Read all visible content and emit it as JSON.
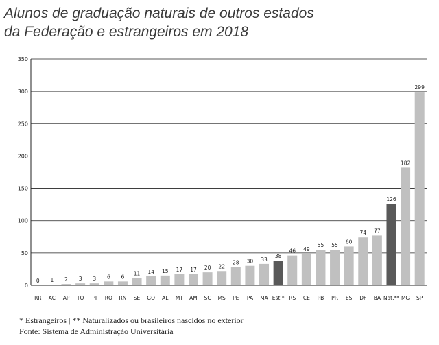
{
  "title_lines": [
    "Alunos de graduação naturais de outros estados",
    "da Federação e estrangeiros em 2018"
  ],
  "footnotes": {
    "legend": "* Estrangeiros | ** Naturalizados ou brasileiros nascidos no exterior",
    "source": "Fonte: Sistema de Administração Universitária"
  },
  "colors": {
    "default_bar": "#c0c0c0",
    "highlight_bar": "#595959",
    "grid": "#222222",
    "text": "#222222"
  },
  "chart_data": {
    "type": "bar",
    "title": "Alunos de graduação naturais de outros estados da Federação e estrangeiros em 2018",
    "xlabel": "",
    "ylabel": "",
    "ylim": [
      0,
      350
    ],
    "yticks": [
      0,
      50,
      100,
      150,
      200,
      250,
      300,
      350
    ],
    "grid": true,
    "categories": [
      "RR",
      "AC",
      "AP",
      "TO",
      "PI",
      "RO",
      "RN",
      "SE",
      "GO",
      "AL",
      "MT",
      "AM",
      "SC",
      "MS",
      "PE",
      "PA",
      "MA",
      "Est.*",
      "RS",
      "CE",
      "PB",
      "PR",
      "ES",
      "DF",
      "BA",
      "Nat.**",
      "MG",
      "SP"
    ],
    "values": [
      0,
      1,
      2,
      3,
      3,
      6,
      6,
      11,
      14,
      15,
      17,
      17,
      20,
      22,
      28,
      30,
      33,
      38,
      46,
      49,
      55,
      55,
      60,
      74,
      77,
      126,
      182,
      299
    ],
    "highlight": [
      "Est.*",
      "Nat.**"
    ]
  }
}
